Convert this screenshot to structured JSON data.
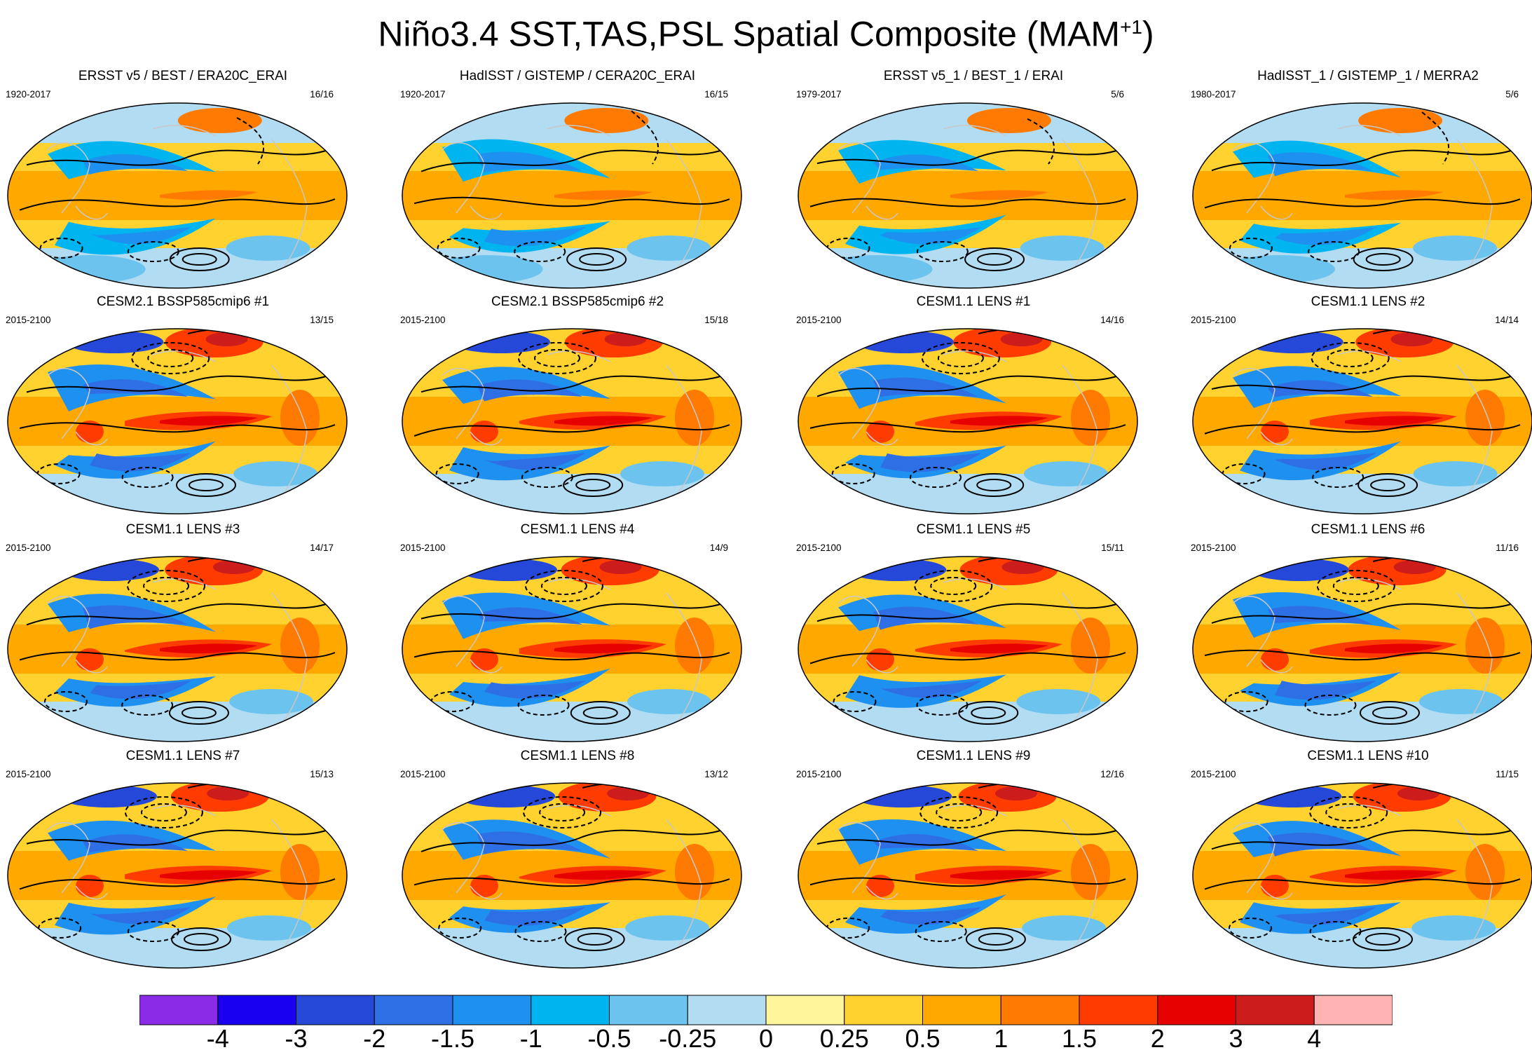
{
  "title": {
    "main": "Niño3.4 SST,TAS,PSL Spatial Composite (MAM",
    "superscript": "+1",
    "close": ")"
  },
  "chart_data": {
    "type": "heatmap",
    "description": "Composite maps of SST/TAS (shaded) and PSL (contours) on Robinson-style global projection",
    "panels": [
      {
        "title": "ERSST v5 / BEST / ERA20C_ERAI",
        "period": "1920-2017",
        "counts": "16/16",
        "style": "obs"
      },
      {
        "title": "HadISST / GISTEMP / CERA20C_ERAI",
        "period": "1920-2017",
        "counts": "16/15",
        "style": "obs"
      },
      {
        "title": "ERSST v5_1 / BEST_1 / ERAI",
        "period": "1979-2017",
        "counts": "5/6",
        "style": "obs"
      },
      {
        "title": "HadISST_1 / GISTEMP_1 / MERRA2",
        "period": "1980-2017",
        "counts": "5/6",
        "style": "obs"
      },
      {
        "title": "CESM2.1 BSSP585cmip6 #1",
        "period": "2015-2100",
        "counts": "13/15",
        "style": "model"
      },
      {
        "title": "CESM2.1 BSSP585cmip6 #2",
        "period": "2015-2100",
        "counts": "15/18",
        "style": "model"
      },
      {
        "title": "CESM1.1 LENS #1",
        "period": "2015-2100",
        "counts": "14/16",
        "style": "model"
      },
      {
        "title": "CESM1.1 LENS #2",
        "period": "2015-2100",
        "counts": "14/14",
        "style": "model"
      },
      {
        "title": "CESM1.1 LENS #3",
        "period": "2015-2100",
        "counts": "14/17",
        "style": "model"
      },
      {
        "title": "CESM1.1 LENS #4",
        "period": "2015-2100",
        "counts": "14/9",
        "style": "model"
      },
      {
        "title": "CESM1.1 LENS #5",
        "period": "2015-2100",
        "counts": "15/11",
        "style": "model"
      },
      {
        "title": "CESM1.1 LENS #6",
        "period": "2015-2100",
        "counts": "11/16",
        "style": "model"
      },
      {
        "title": "CESM1.1 LENS #7",
        "period": "2015-2100",
        "counts": "15/13",
        "style": "model"
      },
      {
        "title": "CESM1.1 LENS #8",
        "period": "2015-2100",
        "counts": "13/12",
        "style": "model"
      },
      {
        "title": "CESM1.1 LENS #9",
        "period": "2015-2100",
        "counts": "12/16",
        "style": "model"
      },
      {
        "title": "CESM1.1 LENS #10",
        "period": "2015-2100",
        "counts": "11/15",
        "style": "model"
      }
    ],
    "colorbar": {
      "labels": [
        "-4",
        "-3",
        "-2",
        "-1.5",
        "-1",
        "-0.5",
        "-0.25",
        "0",
        "0.25",
        "0.5",
        "1",
        "1.5",
        "2",
        "3",
        "4"
      ],
      "colors": [
        "#8a2be8",
        "#1a00f0",
        "#2548d8",
        "#2f6fe6",
        "#1e90f0",
        "#00b4f0",
        "#6cc3ee",
        "#b2dcf2",
        "#fff59a",
        "#ffd230",
        "#ffa800",
        "#ff7a00",
        "#ff3c00",
        "#e60000",
        "#cc1c1c",
        "#ffb4b4"
      ]
    }
  }
}
